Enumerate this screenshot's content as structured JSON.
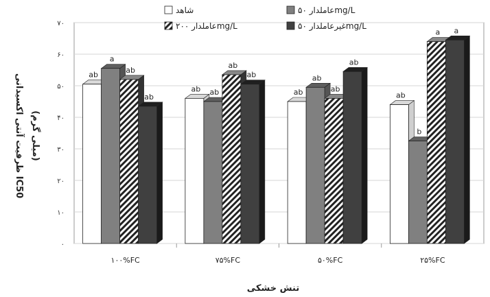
{
  "chart_data": {
    "type": "bar",
    "style": "3d",
    "categories": [
      "۱۰۰%FC",
      "۷۵%FC",
      "۵۰%FC",
      "۲۵%FC"
    ],
    "series": [
      {
        "name": "شاهد",
        "fill": "white",
        "color": "#ffffff",
        "values": [
          50.5,
          46,
          45,
          44
        ],
        "labels": [
          "ab",
          "ab",
          "ab",
          "ab"
        ]
      },
      {
        "name": "عاملدار ۵۰mg/L",
        "fill": "gray",
        "color": "#7f7f7f",
        "values": [
          55.5,
          45,
          49.5,
          32.5
        ],
        "labels": [
          "a",
          "ab",
          "ab",
          "b"
        ]
      },
      {
        "name": "عاملدار ۲۰۰mg/L",
        "fill": "hatch",
        "color": "#ffffff",
        "values": [
          52,
          53.5,
          46,
          64
        ],
        "labels": [
          "ab",
          "ab",
          "ab",
          "a"
        ]
      },
      {
        "name": "غیرعاملدار ۵۰mg/L",
        "fill": "dark",
        "color": "#3f3f3f",
        "values": [
          43.5,
          50.5,
          54.5,
          64.5
        ],
        "labels": [
          "ab",
          "ab",
          "ab",
          "a"
        ]
      }
    ],
    "ylim": [
      0,
      70
    ],
    "yticks": [
      "۰",
      "۱۰",
      "۲۰",
      "۳۰",
      "۴۰",
      "۵۰",
      "۶۰",
      "۷۰"
    ],
    "ylabel_line1": "ظرفیت آنتی اکسیدانی IC50",
    "ylabel_line2": "(میلی گرم)",
    "xlabel": "تنش خشکی",
    "grid": true,
    "legend_position": "top"
  }
}
